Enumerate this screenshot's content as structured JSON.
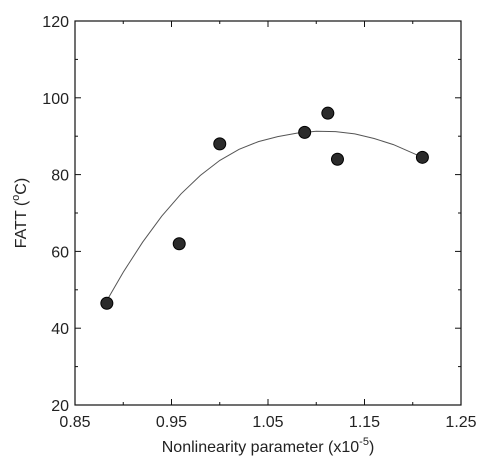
{
  "chart_data": {
    "type": "scatter",
    "xlabel": {
      "prefix": "Nonlinearity parameter (x10",
      "sup": "-5",
      "suffix": ")"
    },
    "ylabel": {
      "prefix": "FATT (",
      "sup": "o",
      "suffix": "C)"
    },
    "xlim": [
      0.85,
      1.25
    ],
    "ylim": [
      20,
      120
    ],
    "xticks": [
      "0.85",
      "0.95",
      "1.05",
      "1.15",
      "1.25"
    ],
    "yticks": [
      "20",
      "40",
      "60",
      "80",
      "100",
      "120"
    ],
    "grid": false,
    "series": [
      {
        "type": "scatter",
        "x": [
          0.883,
          0.958,
          1.0,
          1.088,
          1.112,
          1.122,
          1.21
        ],
        "y": [
          46.5,
          62,
          88,
          91,
          96,
          84,
          84.5
        ]
      },
      {
        "type": "line",
        "fit": "quadratic",
        "x": [
          0.883,
          0.9,
          0.92,
          0.94,
          0.96,
          0.98,
          1.0,
          1.02,
          1.04,
          1.06,
          1.08,
          1.1,
          1.12,
          1.14,
          1.16,
          1.18,
          1.21
        ],
        "y": [
          47.2,
          54.6,
          62.4,
          69.2,
          75.0,
          79.8,
          83.7,
          86.6,
          88.6,
          89.9,
          90.8,
          91.3,
          91.2,
          90.6,
          89.4,
          87.8,
          84.5
        ]
      }
    ]
  }
}
